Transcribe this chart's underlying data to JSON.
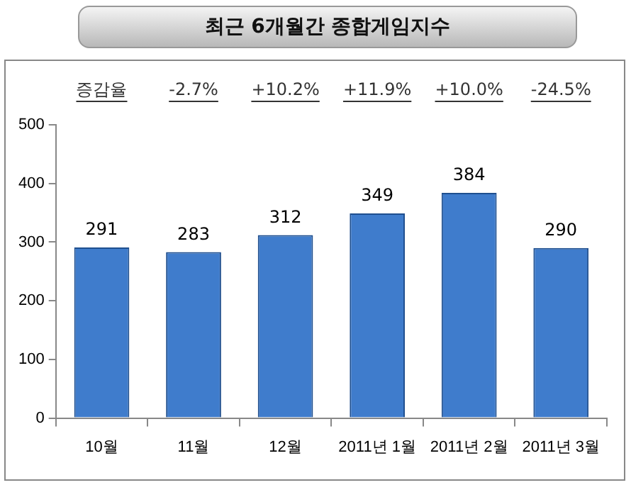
{
  "chart_data": {
    "type": "bar",
    "title": "최근 6개월간 종합게임지수",
    "categories": [
      "10월",
      "11월",
      "12월",
      "2011년 1월",
      "2011년 2월",
      "2011년 3월"
    ],
    "values": [
      291,
      283,
      312,
      349,
      384,
      290
    ],
    "color": "#3f7ccc",
    "ylim": [
      0,
      500
    ],
    "yticks": [
      0,
      100,
      200,
      300,
      400,
      500
    ],
    "grid": false,
    "legend": false,
    "data_labels": true,
    "annotations": [
      "증감율",
      "-2.7%",
      "+10.2%",
      "+11.9%",
      "+10.0%",
      "-24.5%"
    ]
  }
}
